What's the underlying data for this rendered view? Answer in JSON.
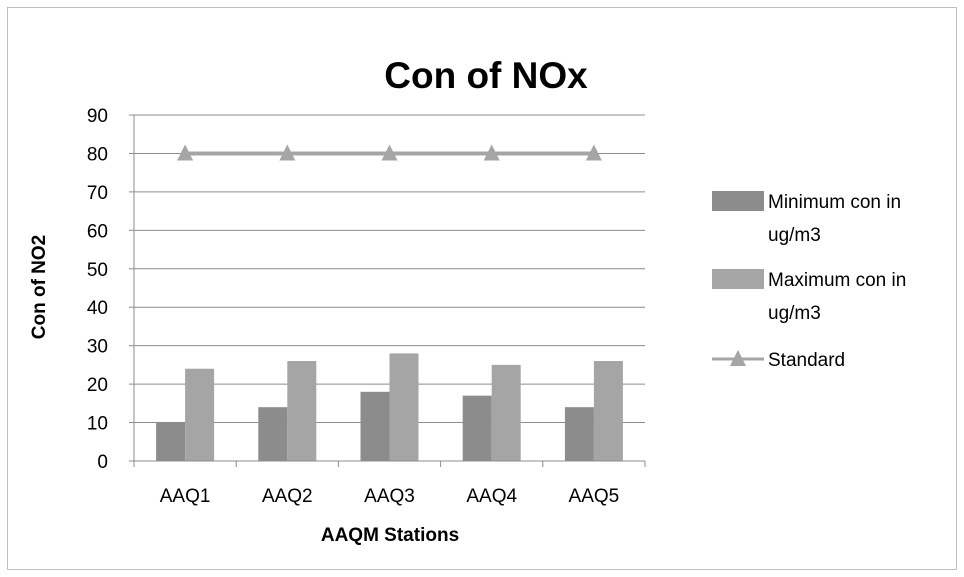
{
  "chart_data": {
    "type": "bar",
    "title": "Con of NOx",
    "xlabel": "AAQM Stations",
    "ylabel": "Con of NO2",
    "ylim": [
      0,
      90
    ],
    "yticks": [
      "0",
      "10",
      "20",
      "30",
      "40",
      "50",
      "60",
      "70",
      "80",
      "90"
    ],
    "categories": [
      "AAQ1",
      "AAQ2",
      "AAQ3",
      "AAQ4",
      "AAQ5"
    ],
    "series": [
      {
        "name": "Minimum con in ug/m3",
        "kind": "bar",
        "values": [
          10,
          14,
          18,
          17,
          14
        ],
        "color": "#8c8c8c",
        "legend_lines": [
          "Minimum con in",
          "ug/m3"
        ]
      },
      {
        "name": "Maximum con in ug/m3",
        "kind": "bar",
        "values": [
          24,
          26,
          28,
          25,
          26
        ],
        "color": "#a5a5a5",
        "legend_lines": [
          "Maximum con in",
          "ug/m3"
        ]
      },
      {
        "name": "Standard",
        "kind": "line",
        "marker": "triangle",
        "values": [
          80,
          80,
          80,
          80,
          80
        ],
        "color": "#a5a5a5",
        "legend_lines": [
          "Standard"
        ]
      }
    ],
    "grid": true,
    "legend_position": "right"
  }
}
